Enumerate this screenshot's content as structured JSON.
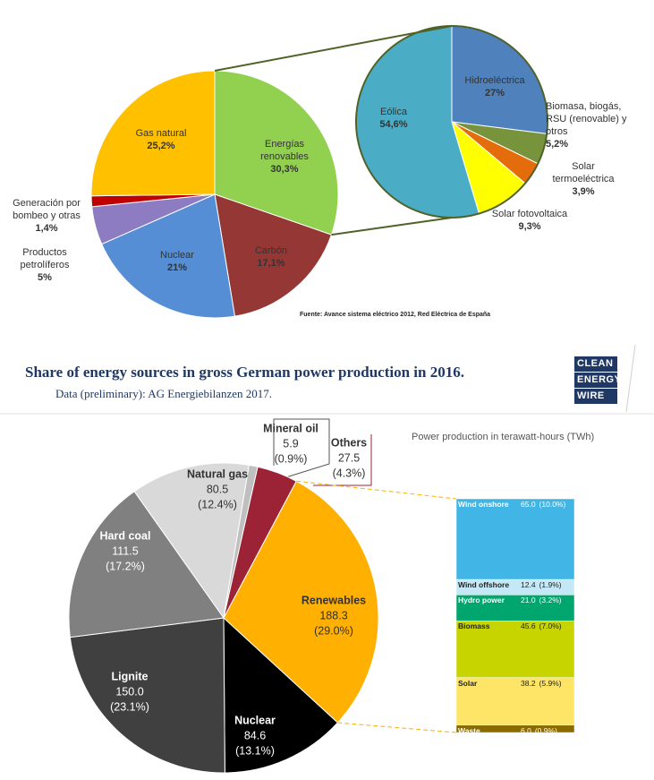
{
  "chart_data": [
    {
      "type": "pie",
      "categories": [
        "Energías renovables",
        "Carbón",
        "Nuclear",
        "Productos petrolíferos",
        "Generación por bombeo y otras",
        "Gas natural"
      ],
      "values": [
        30.3,
        17.1,
        21,
        5,
        1.4,
        25.2
      ],
      "value_labels": [
        "30,3%",
        "17,1%",
        "21%",
        "5%",
        "1,4%",
        "25,2%"
      ],
      "colors": [
        "#92d050",
        "#953735",
        "#558ed5",
        "#8e7cc3",
        "#c00000",
        "#ffc000"
      ],
      "breakdown": {
        "type": "pie",
        "categories": [
          "Hidroeléctrica",
          "Biomasa, biogás, RSU (renovable) y otros",
          "Solar termoeléctrica",
          "Solar fotovoltaica",
          "Eólica"
        ],
        "values": [
          27,
          5.2,
          3.9,
          9.3,
          54.6
        ],
        "value_labels": [
          "27%",
          "5,2%",
          "3,9%",
          "9,3%",
          "54,6%"
        ],
        "colors": [
          "#4f81bd",
          "#77933c",
          "#e46c0a",
          "#ffff00",
          "#4bacc6"
        ]
      },
      "source": "Fuente: Avance sistema eléctrico 2012, Red Eléctrica de España"
    },
    {
      "type": "pie",
      "title": "Share of energy sources in gross German power production in 2016.",
      "subtitle": "Data (preliminary): AG Energiebilanzen 2017.",
      "logo": [
        "CLEAN",
        "ENERGY",
        "WIRE"
      ],
      "note": "Power production in terawatt-hours (TWh)",
      "categories": [
        "Renewables",
        "Nuclear",
        "Lignite",
        "Hard coal",
        "Natural gas",
        "Mineral oil",
        "Others"
      ],
      "values": [
        188.3,
        84.6,
        150.0,
        111.5,
        80.5,
        5.9,
        27.5
      ],
      "value_labels": [
        "188.3",
        "84.6",
        "150.0",
        "111.5",
        "80.5",
        "5.9",
        "27.5"
      ],
      "share_labels": [
        "(29.0%)",
        "(13.1%)",
        "(23.1%)",
        "(17.2%)",
        "(12.4%)",
        "(0.9%)",
        "(4.3%)"
      ],
      "colors": [
        "#ffb000",
        "#000000",
        "#404040",
        "#808080",
        "#d9d9d9",
        "#bfbfbf",
        "#9b2335"
      ],
      "breakdown": {
        "type": "stacked-bar",
        "categories": [
          "Wind onshore",
          "Wind offshore",
          "Hydro power",
          "Biomass",
          "Solar",
          "Waste"
        ],
        "values": [
          65.0,
          12.4,
          21.0,
          45.6,
          38.2,
          6.0
        ],
        "value_labels": [
          "65.0",
          "12.4",
          "21.0",
          "45.6",
          "38.2",
          "6.0"
        ],
        "share_labels": [
          "(10.0%)",
          "(1.9%)",
          "(3.2%)",
          "(7.0%)",
          "(5.9%)",
          "(0.9%)"
        ],
        "colors": [
          "#41b6e6",
          "#c5e8f7",
          "#00a66e",
          "#c8d400",
          "#ffe567",
          "#8a6b00"
        ]
      }
    }
  ]
}
